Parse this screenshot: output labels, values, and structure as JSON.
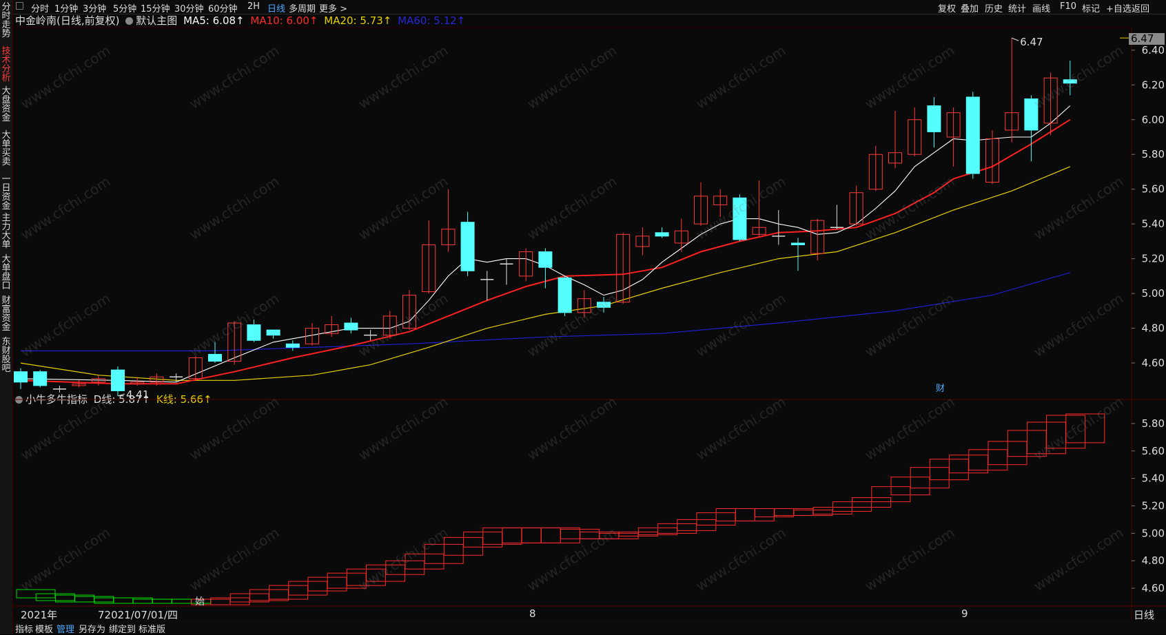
{
  "sidebar": {
    "items": [
      {
        "label": "分时走势",
        "active": false
      },
      {
        "label": "技术分析",
        "active": true
      },
      {
        "label": "大盘资金",
        "active": false
      },
      {
        "label": "大单买卖",
        "active": false
      },
      {
        "label": "一日资金",
        "active": false
      },
      {
        "label": "主力大单",
        "active": false
      },
      {
        "label": "大单盘口",
        "active": false
      },
      {
        "label": "财富资金",
        "active": false
      },
      {
        "label": "东财股吧",
        "active": false
      }
    ]
  },
  "toolbar": {
    "periods": [
      "分时",
      "1分钟",
      "3分钟",
      "5分钟",
      "15分钟",
      "30分钟",
      "60分钟",
      "2H",
      "日线",
      "多周期",
      "更多 >"
    ],
    "active_period": "日线",
    "right_buttons": [
      "复权",
      "叠加",
      "历史",
      "统计",
      "画线",
      "F10",
      "标记",
      "+自选",
      "返回"
    ]
  },
  "main_legend": {
    "title": "中金岭南(日线,前复权)",
    "template": "默认主图",
    "ma5": "MA5: 6.08↑",
    "ma10": "MA10: 6.00↑",
    "ma20": "MA20: 5.73↑",
    "ma60": "MA60: 5.12↑"
  },
  "sub_legend": {
    "title": "小牛多牛指标",
    "d_line": "D线: 5.87↑",
    "k_line": "K线: 5.66↑"
  },
  "current_price": "6.47",
  "annotations": {
    "high": "6.47",
    "low": "4.41",
    "cai": "财",
    "start": "始"
  },
  "x_axis_labels": [
    "2021年",
    "72021/07/01/四",
    "8",
    "9"
  ],
  "period_label": "日线",
  "bottom_tabs": [
    "指标",
    "模板",
    "管理",
    "另存为",
    "绑定到",
    "标准版"
  ],
  "active_bottom_tab": "管理",
  "watermark": "www.cfchi.com",
  "colors": {
    "up": "#ff3b3b",
    "down": "#54ffff",
    "ma5": "#ffffff",
    "ma10": "#ff2020",
    "ma20": "#e6d200",
    "ma60": "#1f1fd0",
    "kline": "#c9c900",
    "subbox": "#ff2a2a",
    "subbox_green": "#00e000"
  },
  "chart_data": [
    {
      "type": "candlestick",
      "title": "中金岭南(日线,前复权)",
      "y_ticks": [
        "6.40",
        "6.20",
        "6.00",
        "5.80",
        "5.60",
        "5.40",
        "5.20",
        "5.00",
        "4.80",
        "4.60"
      ],
      "ylim": [
        4.41,
        6.53
      ],
      "candles": [
        [
          4.55,
          4.49,
          4.57,
          4.45
        ],
        [
          4.55,
          4.47,
          4.56,
          4.46
        ],
        [
          4.45,
          4.45,
          4.47,
          4.43
        ],
        [
          4.47,
          4.48,
          4.5,
          4.46
        ],
        [
          4.49,
          4.51,
          4.53,
          4.47
        ],
        [
          4.56,
          4.44,
          4.58,
          4.41
        ],
        [
          4.48,
          4.49,
          4.52,
          4.47
        ],
        [
          4.49,
          4.52,
          4.54,
          4.47
        ],
        [
          4.52,
          4.52,
          4.54,
          4.49
        ],
        [
          4.51,
          4.63,
          4.64,
          4.5
        ],
        [
          4.65,
          4.61,
          4.72,
          4.6
        ],
        [
          4.61,
          4.83,
          4.84,
          4.59
        ],
        [
          4.82,
          4.73,
          4.85,
          4.72
        ],
        [
          4.79,
          4.76,
          4.79,
          4.74
        ],
        [
          4.71,
          4.69,
          4.73,
          4.67
        ],
        [
          4.71,
          4.8,
          4.83,
          4.7
        ],
        [
          4.77,
          4.82,
          4.87,
          4.75
        ],
        [
          4.83,
          4.79,
          4.86,
          4.77
        ],
        [
          4.76,
          4.76,
          4.79,
          4.73
        ],
        [
          4.76,
          4.87,
          4.9,
          4.74
        ],
        [
          4.8,
          4.99,
          5.02,
          4.79
        ],
        [
          5.01,
          5.28,
          5.42,
          5.0
        ],
        [
          5.28,
          5.37,
          5.6,
          5.24
        ],
        [
          5.41,
          5.13,
          5.47,
          5.1
        ],
        [
          5.08,
          5.08,
          5.13,
          4.96
        ],
        [
          5.17,
          5.17,
          5.2,
          5.05
        ],
        [
          5.1,
          5.24,
          5.26,
          5.07
        ],
        [
          5.24,
          5.15,
          5.26,
          5.03
        ],
        [
          5.09,
          4.89,
          5.1,
          4.87
        ],
        [
          4.89,
          4.97,
          5.02,
          4.86
        ],
        [
          4.95,
          4.92,
          4.98,
          4.89
        ],
        [
          4.95,
          5.34,
          5.35,
          4.94
        ],
        [
          5.27,
          5.33,
          5.38,
          5.22
        ],
        [
          5.35,
          5.33,
          5.38,
          5.32
        ],
        [
          5.29,
          5.36,
          5.43,
          5.24
        ],
        [
          5.4,
          5.56,
          5.64,
          5.39
        ],
        [
          5.51,
          5.56,
          5.6,
          5.44
        ],
        [
          5.55,
          5.31,
          5.57,
          5.3
        ],
        [
          5.34,
          5.38,
          5.65,
          5.33
        ],
        [
          5.33,
          5.33,
          5.48,
          5.28
        ],
        [
          5.29,
          5.28,
          5.32,
          5.13
        ],
        [
          5.23,
          5.42,
          5.43,
          5.19
        ],
        [
          5.38,
          5.38,
          5.51,
          5.37
        ],
        [
          5.4,
          5.58,
          5.62,
          5.39
        ],
        [
          5.6,
          5.8,
          5.85,
          5.59
        ],
        [
          5.75,
          5.81,
          6.05,
          5.72
        ],
        [
          5.8,
          6.0,
          6.07,
          5.79
        ],
        [
          6.08,
          5.93,
          6.13,
          5.84
        ],
        [
          5.9,
          6.04,
          6.07,
          5.73
        ],
        [
          6.13,
          5.69,
          6.16,
          5.66
        ],
        [
          5.64,
          5.89,
          5.94,
          5.63
        ],
        [
          5.94,
          6.04,
          6.47,
          5.87
        ],
        [
          6.12,
          5.94,
          6.14,
          5.76
        ],
        [
          5.98,
          6.24,
          6.27,
          5.91
        ],
        [
          6.23,
          6.21,
          6.34,
          6.14
        ]
      ],
      "ma5": [
        [
          0,
          4.51
        ],
        [
          5,
          4.5
        ],
        [
          8,
          4.49
        ],
        [
          11,
          4.63
        ],
        [
          13,
          4.72
        ],
        [
          15,
          4.76
        ],
        [
          17,
          4.8
        ],
        [
          19,
          4.8
        ],
        [
          20,
          4.84
        ],
        [
          21,
          4.96
        ],
        [
          22,
          5.1
        ],
        [
          23,
          5.2
        ],
        [
          24,
          5.18
        ],
        [
          25,
          5.2
        ],
        [
          26,
          5.2
        ],
        [
          27,
          5.16
        ],
        [
          28,
          5.1
        ],
        [
          29,
          5.05
        ],
        [
          30,
          4.99
        ],
        [
          31,
          5.02
        ],
        [
          32,
          5.08
        ],
        [
          33,
          5.18
        ],
        [
          34,
          5.26
        ],
        [
          35,
          5.34
        ],
        [
          36,
          5.4
        ],
        [
          37,
          5.43
        ],
        [
          38,
          5.43
        ],
        [
          39,
          5.4
        ],
        [
          40,
          5.38
        ],
        [
          41,
          5.34
        ],
        [
          42,
          5.35
        ],
        [
          43,
          5.4
        ],
        [
          44,
          5.49
        ],
        [
          45,
          5.59
        ],
        [
          46,
          5.73
        ],
        [
          47,
          5.81
        ],
        [
          48,
          5.89
        ],
        [
          49,
          5.88
        ],
        [
          50,
          5.89
        ],
        [
          51,
          5.9
        ],
        [
          52,
          5.9
        ],
        [
          53,
          5.98
        ],
        [
          54,
          6.08
        ]
      ],
      "ma10": [
        [
          0,
          4.5
        ],
        [
          5,
          4.48
        ],
        [
          8,
          4.48
        ],
        [
          11,
          4.55
        ],
        [
          14,
          4.63
        ],
        [
          17,
          4.7
        ],
        [
          20,
          4.78
        ],
        [
          22,
          4.87
        ],
        [
          24,
          4.96
        ],
        [
          26,
          5.04
        ],
        [
          28,
          5.1
        ],
        [
          31,
          5.11
        ],
        [
          33,
          5.15
        ],
        [
          35,
          5.24
        ],
        [
          37,
          5.3
        ],
        [
          39,
          5.35
        ],
        [
          41,
          5.36
        ],
        [
          43,
          5.38
        ],
        [
          45,
          5.46
        ],
        [
          47,
          5.58
        ],
        [
          48,
          5.66
        ],
        [
          50,
          5.73
        ],
        [
          52,
          5.86
        ],
        [
          54,
          6.0
        ]
      ],
      "ma20": [
        [
          0,
          4.6
        ],
        [
          4,
          4.53
        ],
        [
          8,
          4.5
        ],
        [
          11,
          4.5
        ],
        [
          15,
          4.53
        ],
        [
          18,
          4.59
        ],
        [
          21,
          4.69
        ],
        [
          24,
          4.8
        ],
        [
          27,
          4.88
        ],
        [
          30,
          4.93
        ],
        [
          33,
          5.03
        ],
        [
          36,
          5.12
        ],
        [
          39,
          5.2
        ],
        [
          42,
          5.24
        ],
        [
          45,
          5.35
        ],
        [
          48,
          5.48
        ],
        [
          51,
          5.59
        ],
        [
          54,
          5.73
        ]
      ],
      "ma60": [
        [
          0,
          4.67
        ],
        [
          10,
          4.67
        ],
        [
          20,
          4.71
        ],
        [
          27,
          4.75
        ],
        [
          33,
          4.77
        ],
        [
          39,
          4.83
        ],
        [
          45,
          4.9
        ],
        [
          50,
          4.99
        ],
        [
          54,
          5.12
        ]
      ]
    },
    {
      "type": "box-indicator",
      "title": "小牛多牛指标",
      "y_ticks": [
        "5.80",
        "5.60",
        "5.40",
        "5.20",
        "5.00",
        "4.80",
        "4.60"
      ],
      "ylim": [
        4.47,
        5.91
      ],
      "boxes": [
        [
          4.59,
          4.53
        ],
        [
          4.56,
          4.51
        ],
        [
          4.55,
          4.5
        ],
        [
          4.54,
          4.5
        ],
        [
          4.53,
          4.49
        ],
        [
          4.53,
          4.49
        ],
        [
          4.52,
          4.49
        ],
        [
          4.52,
          4.49
        ],
        [
          4.52,
          4.49
        ],
        [
          4.52,
          4.48
        ],
        [
          4.53,
          4.48
        ],
        [
          4.56,
          4.5
        ],
        [
          4.59,
          4.51
        ],
        [
          4.62,
          4.52
        ],
        [
          4.65,
          4.55
        ],
        [
          4.68,
          4.58
        ],
        [
          4.71,
          4.6
        ],
        [
          4.74,
          4.62
        ],
        [
          4.77,
          4.65
        ],
        [
          4.8,
          4.7
        ],
        [
          4.85,
          4.74
        ],
        [
          4.92,
          4.78
        ],
        [
          4.97,
          4.84
        ],
        [
          5.01,
          4.9
        ],
        [
          5.04,
          4.92
        ],
        [
          5.04,
          4.93
        ],
        [
          5.04,
          4.93
        ],
        [
          5.04,
          4.93
        ],
        [
          5.03,
          4.96
        ],
        [
          5.01,
          4.96
        ],
        [
          5.0,
          4.96
        ],
        [
          5.01,
          4.98
        ],
        [
          5.04,
          4.99
        ],
        [
          5.07,
          5.0
        ],
        [
          5.1,
          5.02
        ],
        [
          5.15,
          5.06
        ],
        [
          5.18,
          5.09
        ],
        [
          5.18,
          5.09
        ],
        [
          5.18,
          5.12
        ],
        [
          5.18,
          5.13
        ],
        [
          5.17,
          5.13
        ],
        [
          5.19,
          5.14
        ],
        [
          5.23,
          5.16
        ],
        [
          5.26,
          5.19
        ],
        [
          5.34,
          5.23
        ],
        [
          5.41,
          5.28
        ],
        [
          5.48,
          5.33
        ],
        [
          5.54,
          5.39
        ],
        [
          5.57,
          5.44
        ],
        [
          5.61,
          5.46
        ],
        [
          5.67,
          5.5
        ],
        [
          5.75,
          5.56
        ],
        [
          5.81,
          5.58
        ],
        [
          5.86,
          5.62
        ],
        [
          5.87,
          5.66
        ]
      ]
    }
  ]
}
